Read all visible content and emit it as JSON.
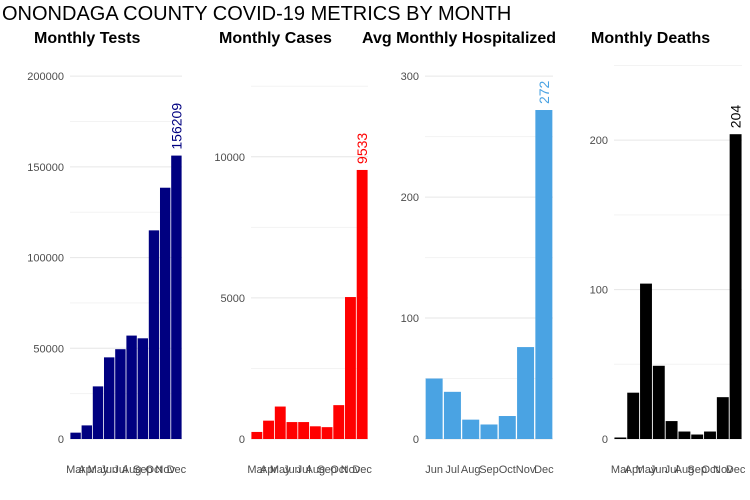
{
  "title": "ONONDAGA COUNTY COVID-19 METRICS BY MONTH",
  "chart_data": [
    {
      "type": "bar",
      "title": "Monthly Tests",
      "color": "#000080",
      "categories": [
        "Mar",
        "Apr",
        "May",
        "Jun",
        "Jul",
        "Aug",
        "Sep",
        "Oct",
        "Nov",
        "Dec"
      ],
      "values": [
        3500,
        7500,
        29000,
        45000,
        49500,
        57000,
        55500,
        115000,
        138500,
        156209
      ],
      "ylim": [
        0,
        210000
      ],
      "yticks": [
        0,
        50000,
        100000,
        150000,
        200000
      ],
      "labeled_value": "156209",
      "grid": true
    },
    {
      "type": "bar",
      "title": "Monthly Cases",
      "color": "#ff0000",
      "categories": [
        "Mar",
        "Apr",
        "May",
        "Jun",
        "Jul",
        "Aug",
        "Sep",
        "Oct",
        "Nov",
        "Dec"
      ],
      "values": [
        250,
        650,
        1150,
        600,
        600,
        450,
        420,
        1200,
        5030,
        9533
      ],
      "ylim": [
        0,
        13500
      ],
      "yticks": [
        0,
        5000,
        10000
      ],
      "labeled_value": "9533",
      "grid": true
    },
    {
      "type": "bar",
      "title": "Avg Monthly Hospitalized",
      "color": "#4aa3e3",
      "categories": [
        "Jun",
        "Jul",
        "Aug",
        "Sep",
        "Oct",
        "Nov",
        "Dec"
      ],
      "values": [
        50,
        39,
        16,
        12,
        19,
        76,
        272
      ],
      "ylim": [
        0,
        315
      ],
      "yticks": [
        0,
        100,
        200,
        300
      ],
      "labeled_value": "272",
      "grid": true
    },
    {
      "type": "bar",
      "title": "Monthly Deaths",
      "color": "#000000",
      "categories": [
        "Mar",
        "Apr",
        "May",
        "Jun",
        "Jul",
        "Aug",
        "Sep",
        "Oct",
        "Nov",
        "Dec"
      ],
      "values": [
        1,
        31,
        104,
        49,
        12,
        5,
        3,
        5,
        28,
        204
      ],
      "ylim": [
        0,
        255
      ],
      "yticks": [
        0,
        100,
        200
      ],
      "labeled_value": "204",
      "grid": true
    }
  ]
}
